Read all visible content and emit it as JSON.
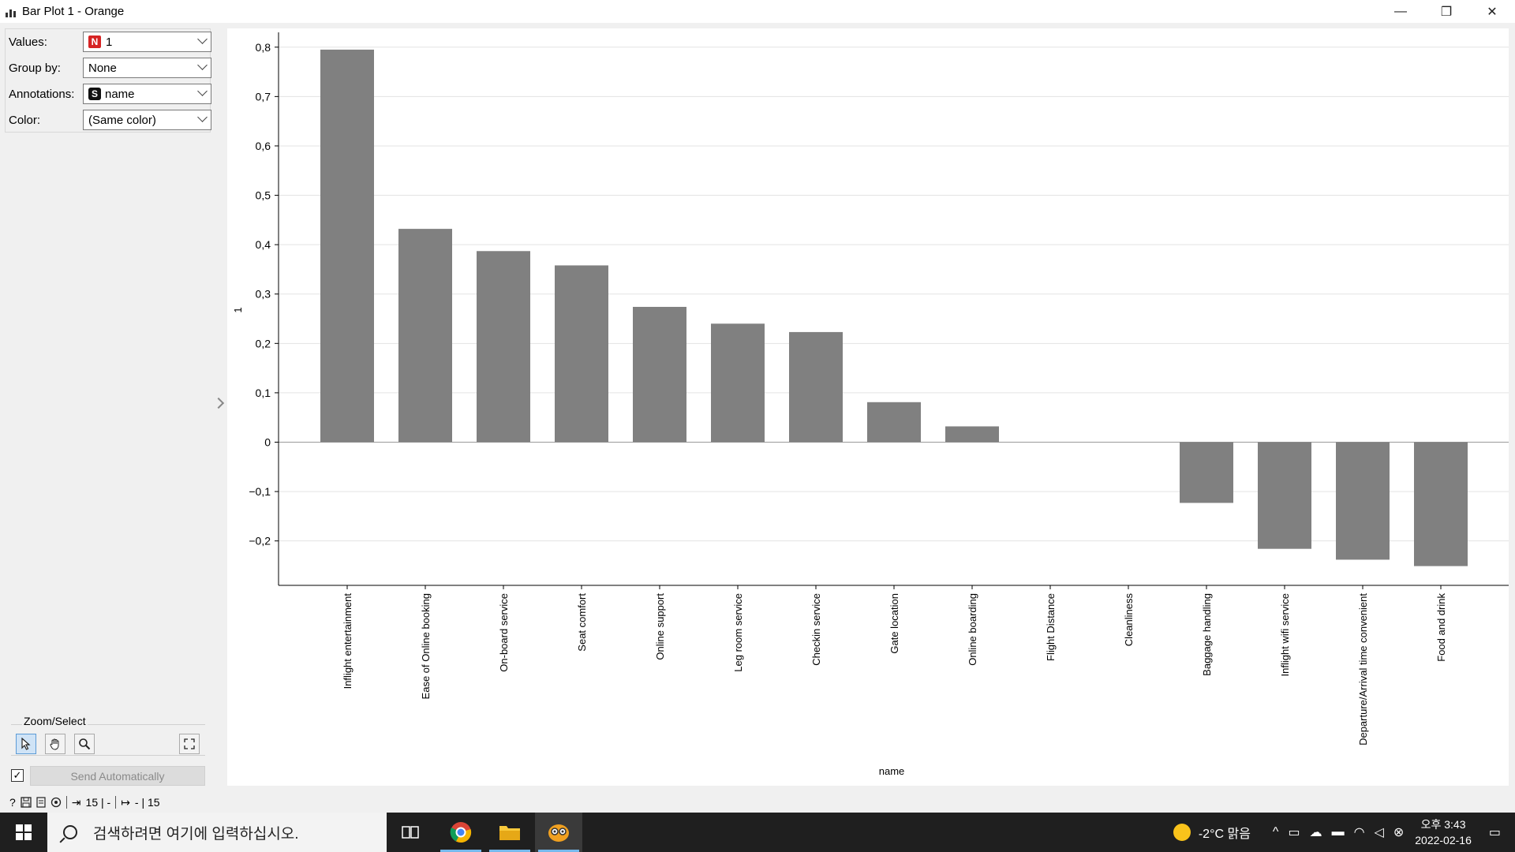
{
  "window": {
    "title": "Bar Plot 1 - Orange",
    "buttons": [
      "—",
      "❐",
      "✕"
    ]
  },
  "controls": {
    "values": {
      "label": "Values:",
      "badge": "N",
      "value": "1"
    },
    "group_by": {
      "label": "Group by:",
      "value": "None"
    },
    "annotations": {
      "label": "Annotations:",
      "badge": "S",
      "value": "name"
    },
    "color": {
      "label": "Color:",
      "value": "(Same color)"
    }
  },
  "zoom": {
    "title": "Zoom/Select",
    "tools": [
      "pointer-icon",
      "hand-pan-icon",
      "zoom-magnifier-icon",
      "fit-view-icon"
    ]
  },
  "send": {
    "checked": true,
    "label": "Send Automatically"
  },
  "status": {
    "input_count": "15 | -",
    "output_count": "- | 15"
  },
  "chart_data": {
    "type": "bar",
    "categories": [
      "Inflight entertainment",
      "Ease of Online booking",
      "On-board service",
      "Seat comfort",
      "Online support",
      "Leg room service",
      "Checkin service",
      "Gate location",
      "Online boarding",
      "Flight Distance",
      "Cleanliness",
      "Baggage handling",
      "Inflight wifi service",
      "Departure/Arrival time convenient",
      "Food and drink"
    ],
    "values": [
      0.795,
      0.432,
      0.387,
      0.358,
      0.274,
      0.24,
      0.223,
      0.081,
      0.032,
      0.0,
      0.0,
      -0.123,
      -0.216,
      -0.238,
      -0.251
    ],
    "yticks": [
      "0,8",
      "0,7",
      "0,6",
      "0,5",
      "0,4",
      "0,3",
      "0,2",
      "0,1",
      "0",
      "−0,1",
      "−0,2"
    ],
    "ytick_values": [
      0.8,
      0.7,
      0.6,
      0.5,
      0.4,
      0.3,
      0.2,
      0.1,
      0,
      -0.1,
      -0.2
    ],
    "ylim": [
      -0.29,
      0.83
    ],
    "xlabel": "name",
    "ylabel": "1",
    "bar_color": "#808080",
    "grid": true
  },
  "taskbar": {
    "search_placeholder": "검색하려면 여기에 입력하십시오.",
    "weather": "-2°C 맑음",
    "time": "오후 3:43",
    "date": "2022-02-16"
  }
}
